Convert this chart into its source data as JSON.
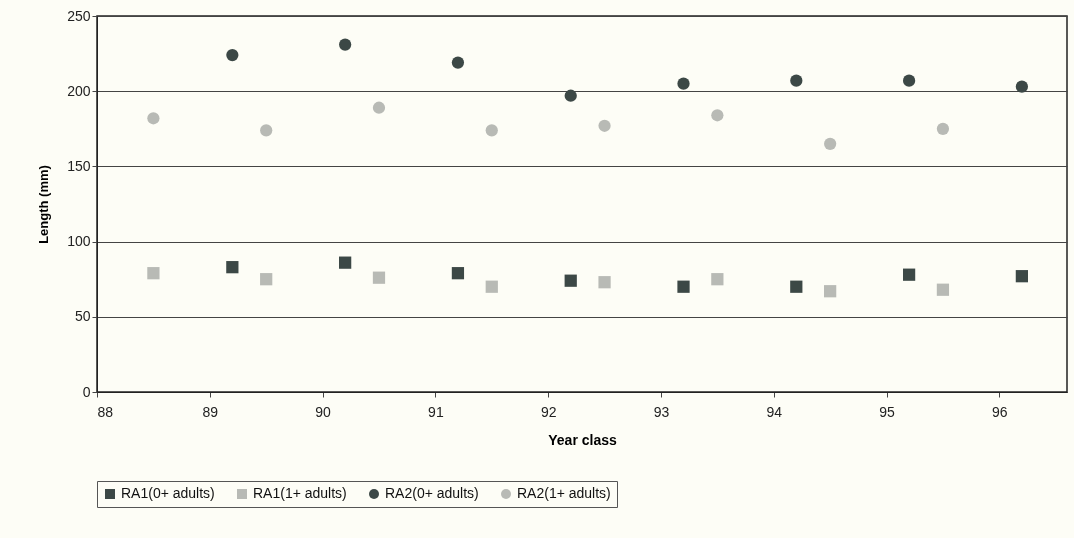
{
  "chart_data": {
    "type": "scatter",
    "xlabel": "Year class",
    "ylabel": "Length (mm)",
    "xlim": [
      88,
      96.6
    ],
    "xticks": [
      88,
      89,
      90,
      91,
      92,
      93,
      94,
      95,
      96
    ],
    "ylim": [
      0,
      250
    ],
    "yticks": [
      0,
      50,
      100,
      150,
      200,
      250
    ],
    "grid": "y",
    "legend": "bottom",
    "series": [
      {
        "name": "RA1(0+ adults)",
        "color": "#3c4846",
        "marker": "square",
        "x": [
          89.2,
          90.2,
          91.2,
          92.2,
          93.2,
          94.2,
          95.2,
          96.2
        ],
        "values": [
          83,
          86,
          79,
          74,
          70,
          70,
          78,
          77
        ]
      },
      {
        "name": "RA1(1+ adults)",
        "color": "#b8bab5",
        "marker": "square",
        "x": [
          88.5,
          89.5,
          90.5,
          91.5,
          92.5,
          93.5,
          94.5,
          95.5
        ],
        "values": [
          79,
          75,
          76,
          70,
          73,
          75,
          67,
          68
        ]
      },
      {
        "name": "RA2(0+ adults)",
        "color": "#3c4846",
        "marker": "circle",
        "x": [
          89.2,
          90.2,
          91.2,
          92.2,
          93.2,
          94.2,
          95.2,
          96.2
        ],
        "values": [
          224,
          231,
          219,
          197,
          205,
          207,
          207,
          203
        ]
      },
      {
        "name": "RA2(1+ adults)",
        "color": "#b8bab5",
        "marker": "circle",
        "x": [
          88.5,
          89.5,
          90.5,
          91.5,
          92.5,
          93.5,
          94.5,
          95.5
        ],
        "values": [
          182,
          174,
          189,
          174,
          177,
          184,
          165,
          175
        ]
      }
    ]
  }
}
